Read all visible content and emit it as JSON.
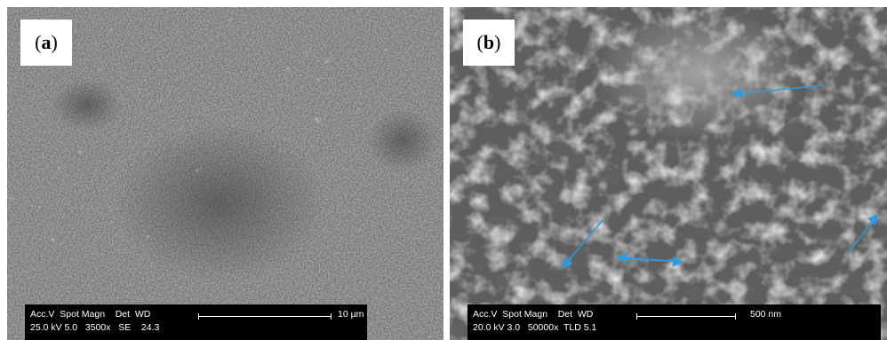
{
  "panels": [
    {
      "label": "a",
      "databar": {
        "row1": "Acc.V  Spot Magn    Det  WD",
        "row2": "25.0 kV 5.0   3500x   SE    24.3",
        "scale": "10 µm"
      }
    },
    {
      "label": "b",
      "databar": {
        "row1": "Acc.V  Spot Magn    Det  WD",
        "row2": "20.0 kV 3.0   50000x  TLD 5.1",
        "scale": "500 nm"
      }
    }
  ],
  "colors": {
    "arrow": "#2e9be0",
    "databar_bg": "#000000",
    "label_bg": "#ffffff"
  }
}
